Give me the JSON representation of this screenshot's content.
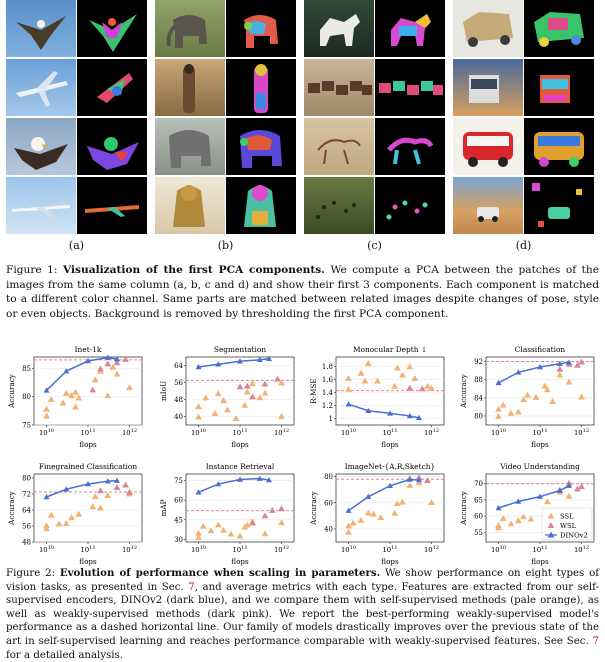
{
  "figure1": {
    "sublabels": [
      "(a)",
      "(b)",
      "(c)",
      "(d)"
    ],
    "caption_prefix": "Figure 1: ",
    "caption_bold": "Visualization of the first PCA components.",
    "caption_text": " We compute a PCA between the patches of the images from the same column (a, b, c and d) and show their first 3 components. Each component is matched to a different color channel. Same parts are matched between related images despite changes of pose, style or even objects. Background is removed by thresholding the first PCA component."
  },
  "figure2": {
    "caption_prefix": "Figure 2: ",
    "caption_bold": "Evolution of performance when scaling in parameters.",
    "caption_part1": " We show performance on eight types of vision tasks, as presented in Sec. ",
    "ref1": "7",
    "caption_part2": ", and average metrics with each type. Features are extracted from our self-supervised encoders, DINOv2 (dark blue), and we compare them with self-supervised methods (pale orange), as well as weakly-supervised methods (dark pink). We report the best-performing weakly-supervised model's performance as a dashed horizontal line. Our family of models drastically improves over the previous state of the art in self-supervised learning and reaches performance comparable with weakly-supervised features. See Sec. ",
    "ref2": "7",
    "caption_part3": " for a detailed analysis.",
    "legend": [
      "SSL",
      "WSL",
      "DINOv2"
    ],
    "xlabel": "flops"
  },
  "colors": {
    "dino": "#4a6fd4",
    "ssl": "#f3b272",
    "wsl": "#d9849a",
    "dashed": "#d9849a"
  },
  "chart_data": [
    {
      "type": "scatter",
      "title": "Inet-1k",
      "ylabel": "Accuracy",
      "xlabel": "flops",
      "xlog": true,
      "xlim": [
        5000000000.0,
        2000000000000.0
      ],
      "ylim": [
        75,
        87
      ],
      "yticks": [
        75,
        80,
        85
      ],
      "dashed": 86.5,
      "series": [
        {
          "name": "DINOv2",
          "x": [
            10000000000.0,
            30000000000.0,
            100000000000.0,
            300000000000.0,
            500000000000.0
          ],
          "y": [
            81.1,
            84.5,
            86.3,
            86.9,
            86.6
          ]
        }
      ],
      "ssl": [
        [
          10000000000.0,
          77.8
        ],
        [
          10000000000.0,
          76.6
        ],
        [
          13000000000.0,
          79.5
        ],
        [
          25000000000.0,
          78.9
        ],
        [
          30000000000.0,
          80.6
        ],
        [
          40000000000.0,
          80.2
        ],
        [
          50000000000.0,
          80.8
        ],
        [
          60000000000.0,
          79.8
        ],
        [
          50000000000.0,
          78.2
        ],
        [
          150000000000.0,
          83.0
        ],
        [
          200000000000.0,
          84.5
        ],
        [
          400000000000.0,
          85.2
        ],
        [
          500000000000.0,
          84.0
        ],
        [
          1000000000000.0,
          81.6
        ],
        [
          300000000000.0,
          80.2
        ]
      ],
      "wsl": [
        [
          130000000000.0,
          81.2
        ],
        [
          200000000000.0,
          84.9
        ],
        [
          500000000000.0,
          86.0
        ],
        [
          800000000000.0,
          86.6
        ],
        [
          300000000000.0,
          85.8
        ]
      ]
    },
    {
      "type": "scatter",
      "title": "Segmentation",
      "ylabel": "mIoU",
      "xlabel": "flops",
      "xlog": true,
      "xlim": [
        5000000000.0,
        2000000000000.0
      ],
      "ylim": [
        36,
        68
      ],
      "yticks": [
        40,
        48,
        56,
        64
      ],
      "dashed": 57,
      "series": [
        {
          "name": "DINOv2",
          "x": [
            10000000000.0,
            30000000000.0,
            100000000000.0,
            300000000000.0,
            500000000000.0
          ],
          "y": [
            63.3,
            64.6,
            66.0,
            66.7,
            67.2
          ]
        }
      ],
      "ssl": [
        [
          10000000000.0,
          39.8
        ],
        [
          10000000000.0,
          44.7
        ],
        [
          15000000000.0,
          48.8
        ],
        [
          25000000000.0,
          41.5
        ],
        [
          30000000000.0,
          50.8
        ],
        [
          40000000000.0,
          47.5
        ],
        [
          50000000000.0,
          43.2
        ],
        [
          80000000000.0,
          39.1
        ],
        [
          130000000000.0,
          45.3
        ],
        [
          150000000000.0,
          51.6
        ],
        [
          200000000000.0,
          55.5
        ],
        [
          300000000000.0,
          48.9
        ],
        [
          400000000000.0,
          51.0
        ],
        [
          1000000000000.0,
          40.1
        ],
        [
          1000000000000.0,
          55.8
        ]
      ],
      "wsl": [
        [
          100000000000.0,
          54.0
        ],
        [
          150000000000.0,
          54.3
        ],
        [
          200000000000.0,
          49.3
        ],
        [
          400000000000.0,
          55.3
        ],
        [
          800000000000.0,
          57.7
        ]
      ]
    },
    {
      "type": "scatter",
      "title": "Monocular Depth ↓",
      "ylabel": "R-MSE",
      "xlabel": "flops",
      "xlog": true,
      "xlim": [
        5000000000.0,
        2000000000000.0
      ],
      "ylim": [
        0.9,
        1.95
      ],
      "yticks": [
        1.0,
        1.2,
        1.4,
        1.6,
        1.8
      ],
      "dashed": 1.43,
      "series": [
        {
          "name": "DINOv2",
          "x": [
            10000000000.0,
            30000000000.0,
            100000000000.0,
            300000000000.0,
            500000000000.0
          ],
          "y": [
            1.22,
            1.12,
            1.08,
            1.04,
            1.01
          ]
        }
      ],
      "ssl": [
        [
          10000000000.0,
          1.62
        ],
        [
          10000000000.0,
          1.45
        ],
        [
          20000000000.0,
          1.7
        ],
        [
          25000000000.0,
          1.58
        ],
        [
          30000000000.0,
          1.85
        ],
        [
          50000000000.0,
          1.58
        ],
        [
          130000000000.0,
          1.5
        ],
        [
          150000000000.0,
          1.78
        ],
        [
          200000000000.0,
          1.67
        ],
        [
          300000000000.0,
          1.8
        ],
        [
          400000000000.0,
          1.62
        ],
        [
          800000000000.0,
          1.5
        ],
        [
          1000000000000.0,
          1.47
        ]
      ],
      "wsl": [
        [
          300000000000.0,
          1.47
        ],
        [
          600000000000.0,
          1.46
        ]
      ]
    },
    {
      "type": "scatter",
      "title": "Classification",
      "ylabel": "Accuracy",
      "xlabel": "flops",
      "xlog": true,
      "xlim": [
        5000000000.0,
        2000000000000.0
      ],
      "ylim": [
        78,
        93
      ],
      "yticks": [
        80,
        84,
        88,
        92
      ],
      "dashed": 92,
      "series": [
        {
          "name": "DINOv2",
          "x": [
            10000000000.0,
            30000000000.0,
            100000000000.0,
            300000000000.0,
            500000000000.0
          ],
          "y": [
            87.3,
            89.6,
            90.8,
            91.5,
            91.8
          ]
        }
      ],
      "ssl": [
        [
          10000000000.0,
          81.5
        ],
        [
          10000000000.0,
          79.9
        ],
        [
          13000000000.0,
          82.4
        ],
        [
          20000000000.0,
          80.6
        ],
        [
          30000000000.0,
          80.9
        ],
        [
          40000000000.0,
          83.6
        ],
        [
          50000000000.0,
          84.6
        ],
        [
          80000000000.0,
          84.1
        ],
        [
          130000000000.0,
          86.6
        ],
        [
          150000000000.0,
          85.8
        ],
        [
          200000000000.0,
          83.2
        ],
        [
          300000000000.0,
          89.0
        ],
        [
          500000000000.0,
          87.5
        ],
        [
          1000000000000.0,
          84.2
        ]
      ],
      "wsl": [
        [
          300000000000.0,
          90.3
        ],
        [
          500000000000.0,
          91.4
        ],
        [
          800000000000.0,
          91.2
        ],
        [
          1000000000000.0,
          91.9
        ]
      ]
    },
    {
      "type": "scatter",
      "title": "Finegrained Classification",
      "ylabel": "Accuracy",
      "xlabel": "flops",
      "xlog": true,
      "xlim": [
        5000000000.0,
        2000000000000.0
      ],
      "ylim": [
        48,
        82
      ],
      "yticks": [
        48,
        56,
        64,
        72,
        80
      ],
      "dashed": 73,
      "series": [
        {
          "name": "DINOv2",
          "x": [
            10000000000.0,
            30000000000.0,
            100000000000.0,
            300000000000.0,
            500000000000.0
          ],
          "y": [
            70.5,
            74.4,
            77.0,
            78.4,
            78.7
          ]
        }
      ],
      "ssl": [
        [
          10000000000.0,
          56.2
        ],
        [
          10000000000.0,
          54.8
        ],
        [
          13000000000.0,
          61.4
        ],
        [
          20000000000.0,
          57.1
        ],
        [
          30000000000.0,
          57.3
        ],
        [
          40000000000.0,
          60.2
        ],
        [
          60000000000.0,
          61.9
        ],
        [
          130000000000.0,
          65.7
        ],
        [
          150000000000.0,
          70.7
        ],
        [
          200000000000.0,
          65.0
        ],
        [
          300000000000.0,
          71.3
        ],
        [
          500000000000.0,
          75.3
        ],
        [
          1000000000000.0,
          72.1
        ]
      ],
      "wsl": [
        [
          200000000000.0,
          73.7
        ],
        [
          500000000000.0,
          75.2
        ],
        [
          800000000000.0,
          76.5
        ],
        [
          1000000000000.0,
          72.9
        ]
      ]
    },
    {
      "type": "scatter",
      "title": "Instance Retrieval",
      "ylabel": "mAP",
      "xlabel": "flops",
      "xlog": true,
      "xlim": [
        5000000000.0,
        2000000000000.0
      ],
      "ylim": [
        28,
        80
      ],
      "yticks": [
        30,
        45,
        60,
        75
      ],
      "dashed": 52,
      "series": [
        {
          "name": "DINOv2",
          "x": [
            10000000000.0,
            30000000000.0,
            100000000000.0,
            300000000000.0,
            500000000000.0
          ],
          "y": [
            66.0,
            72.3,
            75.8,
            76.5,
            75.4
          ]
        }
      ],
      "ssl": [
        [
          10000000000.0,
          34.8
        ],
        [
          10000000000.0,
          31.6
        ],
        [
          13000000000.0,
          40.1
        ],
        [
          20000000000.0,
          36.6
        ],
        [
          30000000000.0,
          41.1
        ],
        [
          40000000000.0,
          37.0
        ],
        [
          60000000000.0,
          34.2
        ],
        [
          100000000000.0,
          32.6
        ],
        [
          130000000000.0,
          39.4
        ],
        [
          150000000000.0,
          41.1
        ],
        [
          200000000000.0,
          43.6
        ],
        [
          400000000000.0,
          34.3
        ],
        [
          1000000000000.0,
          42.8
        ]
      ],
      "wsl": [
        [
          200000000000.0,
          42.6
        ],
        [
          400000000000.0,
          48.0
        ],
        [
          600000000000.0,
          52.2
        ],
        [
          1000000000000.0,
          53.5
        ]
      ]
    },
    {
      "type": "scatter",
      "title": "ImageNet-{A,R,Sketch}",
      "ylabel": "Accuracy",
      "xlabel": "flops",
      "xlog": true,
      "xlim": [
        5000000000.0,
        2000000000000.0
      ],
      "ylim": [
        30,
        82
      ],
      "yticks": [
        40,
        60,
        80
      ],
      "dashed": 78,
      "series": [
        {
          "name": "DINOv2",
          "x": [
            10000000000.0,
            30000000000.0,
            100000000000.0,
            300000000000.0,
            500000000000.0
          ],
          "y": [
            54.0,
            64.6,
            73.0,
            77.8,
            77.4
          ]
        }
      ],
      "ssl": [
        [
          10000000000.0,
          42.4
        ],
        [
          10000000000.0,
          37.5
        ],
        [
          13000000000.0,
          44.6
        ],
        [
          20000000000.0,
          46.7
        ],
        [
          30000000000.0,
          52.2
        ],
        [
          40000000000.0,
          51.4
        ],
        [
          60000000000.0,
          48.8
        ],
        [
          130000000000.0,
          52.1
        ],
        [
          150000000000.0,
          59.4
        ],
        [
          200000000000.0,
          60.6
        ],
        [
          300000000000.0,
          73.3
        ],
        [
          500000000000.0,
          75.4
        ],
        [
          1000000000000.0,
          60.2
        ]
      ],
      "wsl": [
        [
          300000000000.0,
          78.5
        ],
        [
          500000000000.0,
          79.2
        ],
        [
          800000000000.0,
          77.0
        ]
      ]
    },
    {
      "type": "scatter",
      "title": "Video Understanding",
      "ylabel": "Accuracy",
      "xlabel": "flops",
      "xlog": true,
      "xlim": [
        5000000000.0,
        2000000000000.0
      ],
      "ylim": [
        52,
        73
      ],
      "yticks": [
        55,
        60,
        65,
        70
      ],
      "dashed": 70,
      "series": [
        {
          "name": "DINOv2",
          "x": [
            10000000000.0,
            30000000000.0,
            100000000000.0,
            300000000000.0,
            500000000000.0
          ],
          "y": [
            62.5,
            64.5,
            66.0,
            67.9,
            69.4
          ]
        }
      ],
      "ssl": [
        [
          10000000000.0,
          57.1
        ],
        [
          10000000000.0,
          56.4
        ],
        [
          13000000000.0,
          59.3
        ],
        [
          20000000000.0,
          57.6
        ],
        [
          30000000000.0,
          58.6
        ],
        [
          40000000000.0,
          59.8
        ],
        [
          60000000000.0,
          59.1
        ],
        [
          130000000000.0,
          61.1
        ],
        [
          150000000000.0,
          64.5
        ],
        [
          200000000000.0,
          60.2
        ],
        [
          300000000000.0,
          67.4
        ],
        [
          500000000000.0,
          66.2
        ]
      ],
      "wsl": [
        [
          300000000000.0,
          68.0
        ],
        [
          500000000000.0,
          70.2
        ],
        [
          800000000000.0,
          68.4
        ],
        [
          1000000000000.0,
          69.1
        ]
      ]
    }
  ]
}
